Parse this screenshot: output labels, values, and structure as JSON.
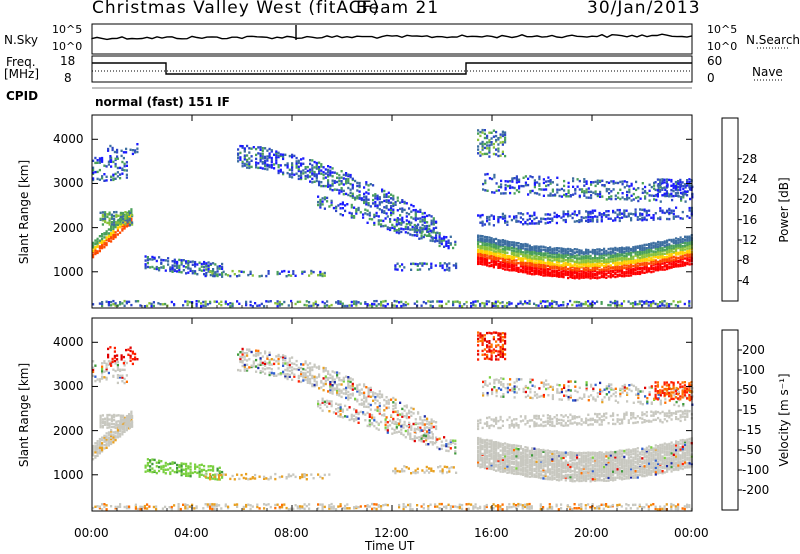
{
  "header": {
    "station": "Christmas Valley West (fitACF)",
    "beam": "Beam 21",
    "date": "30/Jan/2013"
  },
  "top_panels": {
    "nsky_label": "N.Sky",
    "nsky_ticks": [
      "10^5",
      "10^0"
    ],
    "nsearch_label": "N.Search",
    "nsearch_ticks": [
      "10^5",
      "10^0"
    ],
    "freq_label_line1": "Freq.",
    "freq_label_line2": "[MHz]",
    "freq_ticks": [
      "18",
      "8"
    ],
    "nave_label": "Nave",
    "nave_ticks": [
      "60",
      "0"
    ],
    "cpid_label": "CPID",
    "cpid_text": "normal (fast) 151 IF"
  },
  "chart_data": [
    {
      "type": "heatmap",
      "name": "power",
      "ylabel": "Slant Range [km]",
      "xlabel": "",
      "x_ticks": [
        "00:00",
        "04:00",
        "08:00",
        "12:00",
        "16:00",
        "20:00",
        "00:00"
      ],
      "y_ticks": [
        "1000",
        "2000",
        "3000",
        "4000"
      ],
      "ylim": [
        180,
        4550
      ],
      "colorbar_label": "Power [dB]",
      "colorbar_ticks": [
        "4",
        "8",
        "12",
        "16",
        "20",
        "24",
        "28"
      ],
      "colors": [
        "#1a1aff",
        "#2c46c8",
        "#3d6ea0",
        "#4aa05a",
        "#8ac23c",
        "#ffd000",
        "#ff9a00",
        "#ff4a00",
        "#ff0000"
      ]
    },
    {
      "type": "heatmap",
      "name": "velocity",
      "ylabel": "Slant Range [km]",
      "xlabel": "Time UT",
      "x_ticks": [
        "00:00",
        "04:00",
        "08:00",
        "12:00",
        "16:00",
        "20:00",
        "00:00"
      ],
      "y_ticks": [
        "1000",
        "2000",
        "3000",
        "4000"
      ],
      "ylim": [
        180,
        4550
      ],
      "colorbar_label": "Velocity [m s⁻¹]",
      "colorbar_ticks": [
        "200",
        "100",
        "50",
        "15",
        "-15",
        "-50",
        "-100",
        "-200"
      ],
      "colors": [
        "#1a2aa8",
        "#2f5fd0",
        "#3e9a3a",
        "#7ad040",
        "#c8c8c0",
        "#e8a020",
        "#ff7000",
        "#ff2000",
        "#e00000"
      ]
    }
  ]
}
